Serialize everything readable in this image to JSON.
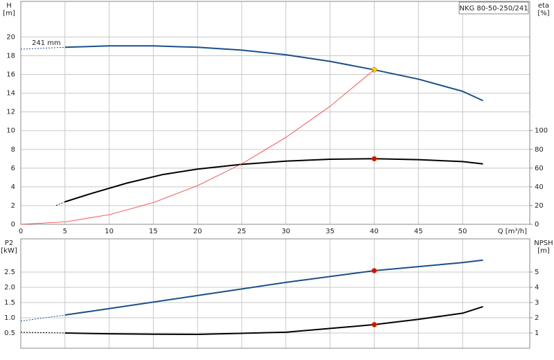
{
  "chart_data": [
    {
      "type": "line",
      "title": "NKG 80-50-250/241",
      "ylabel": "H",
      "yunit": "[m]",
      "y2label": "eta",
      "y2unit": "[%]",
      "xlabel": "Q [m³/h]",
      "xlim": [
        0,
        57.6
      ],
      "xticks": [
        0,
        5,
        10,
        15,
        20,
        25,
        30,
        35,
        40,
        45,
        50
      ],
      "xtick_labels": true,
      "ylim": [
        0,
        23.8
      ],
      "yticks": [
        0,
        2,
        4,
        6,
        8,
        10,
        12,
        14,
        16,
        18,
        20
      ],
      "y2lim": [
        0,
        238
      ],
      "y2ticks": [
        0,
        20,
        40,
        60,
        80,
        100
      ],
      "grid": true,
      "series": [
        {
          "name": "241 mm",
          "color": "#1a4f8a",
          "dashed": true,
          "x": [
            0,
            5
          ],
          "values": [
            18.7,
            18.9
          ]
        },
        {
          "color": "#1a4f8a",
          "x": [
            5,
            10,
            15,
            20,
            25,
            30,
            35,
            40,
            45,
            50,
            52.3
          ],
          "values": [
            18.9,
            19.05,
            19.05,
            18.9,
            18.6,
            18.1,
            17.4,
            16.5,
            15.5,
            14.2,
            13.2
          ],
          "points": [
            {
              "x": 40,
              "value": 16.5,
              "color": "#ffd700"
            }
          ]
        },
        {
          "color": "#000000",
          "dashed": true,
          "axis": "y2",
          "x": [
            4,
            5
          ],
          "values": [
            20,
            24
          ]
        },
        {
          "color": "#000000",
          "axis": "y2",
          "x": [
            5,
            8,
            12,
            16,
            20,
            25,
            30,
            35,
            40,
            45,
            50,
            52.3
          ],
          "values": [
            24,
            33,
            44,
            53,
            59,
            64,
            67.5,
            69.5,
            70,
            69,
            67,
            64.5
          ],
          "points": [
            {
              "x": 40,
              "value": 70,
              "color": "#ee0000"
            }
          ]
        },
        {
          "color": "#ff3030",
          "thin": true,
          "x": [
            0,
            5,
            10,
            15,
            20,
            25,
            30,
            35,
            40
          ],
          "values": [
            0,
            0.26,
            1.03,
            2.32,
            4.13,
            6.45,
            9.28,
            12.6,
            16.5
          ]
        }
      ]
    },
    {
      "type": "line",
      "ylabel": "P2",
      "yunit": "[kW]",
      "y2label": "NPSH",
      "y2unit": "[m]",
      "xlim": [
        0,
        57.6
      ],
      "xticks": [
        0,
        5,
        10,
        15,
        20,
        25,
        30,
        35,
        40,
        45,
        50
      ],
      "xtick_labels": false,
      "ylim": [
        0,
        3.59
      ],
      "yticks": [
        0.5,
        {
          "value": 1,
          "label": "1.0"
        },
        1.5,
        {
          "value": 2,
          "label": "2.0"
        },
        2.5
      ],
      "y2lim": [
        0,
        7.18
      ],
      "y2ticks": [
        1,
        2,
        3,
        4,
        5
      ],
      "grid": true,
      "series": [
        {
          "color": "#1a4f8a",
          "dashed": true,
          "x": [
            0,
            5
          ],
          "values": [
            0.89,
            1.09
          ]
        },
        {
          "color": "#1a4f8a",
          "x": [
            5,
            10,
            20,
            30,
            40,
            45,
            50,
            52.3
          ],
          "values": [
            1.09,
            1.3,
            1.73,
            2.16,
            2.545,
            2.68,
            2.81,
            2.89
          ],
          "points": [
            {
              "x": 40,
              "value": 2.545,
              "color": "#ee0000"
            }
          ]
        },
        {
          "color": "#000000",
          "dashed": true,
          "axis": "y2",
          "x": [
            0,
            5
          ],
          "values": [
            1.05,
            1.0
          ]
        },
        {
          "color": "#000000",
          "axis": "y2",
          "x": [
            5,
            10,
            15,
            20,
            30,
            40,
            45,
            50,
            52.3
          ],
          "values": [
            1.0,
            0.95,
            0.92,
            0.91,
            1.05,
            1.55,
            1.9,
            2.3,
            2.73
          ],
          "points": [
            {
              "x": 40,
              "value": 1.55,
              "color": "#ee0000"
            }
          ]
        }
      ]
    }
  ]
}
